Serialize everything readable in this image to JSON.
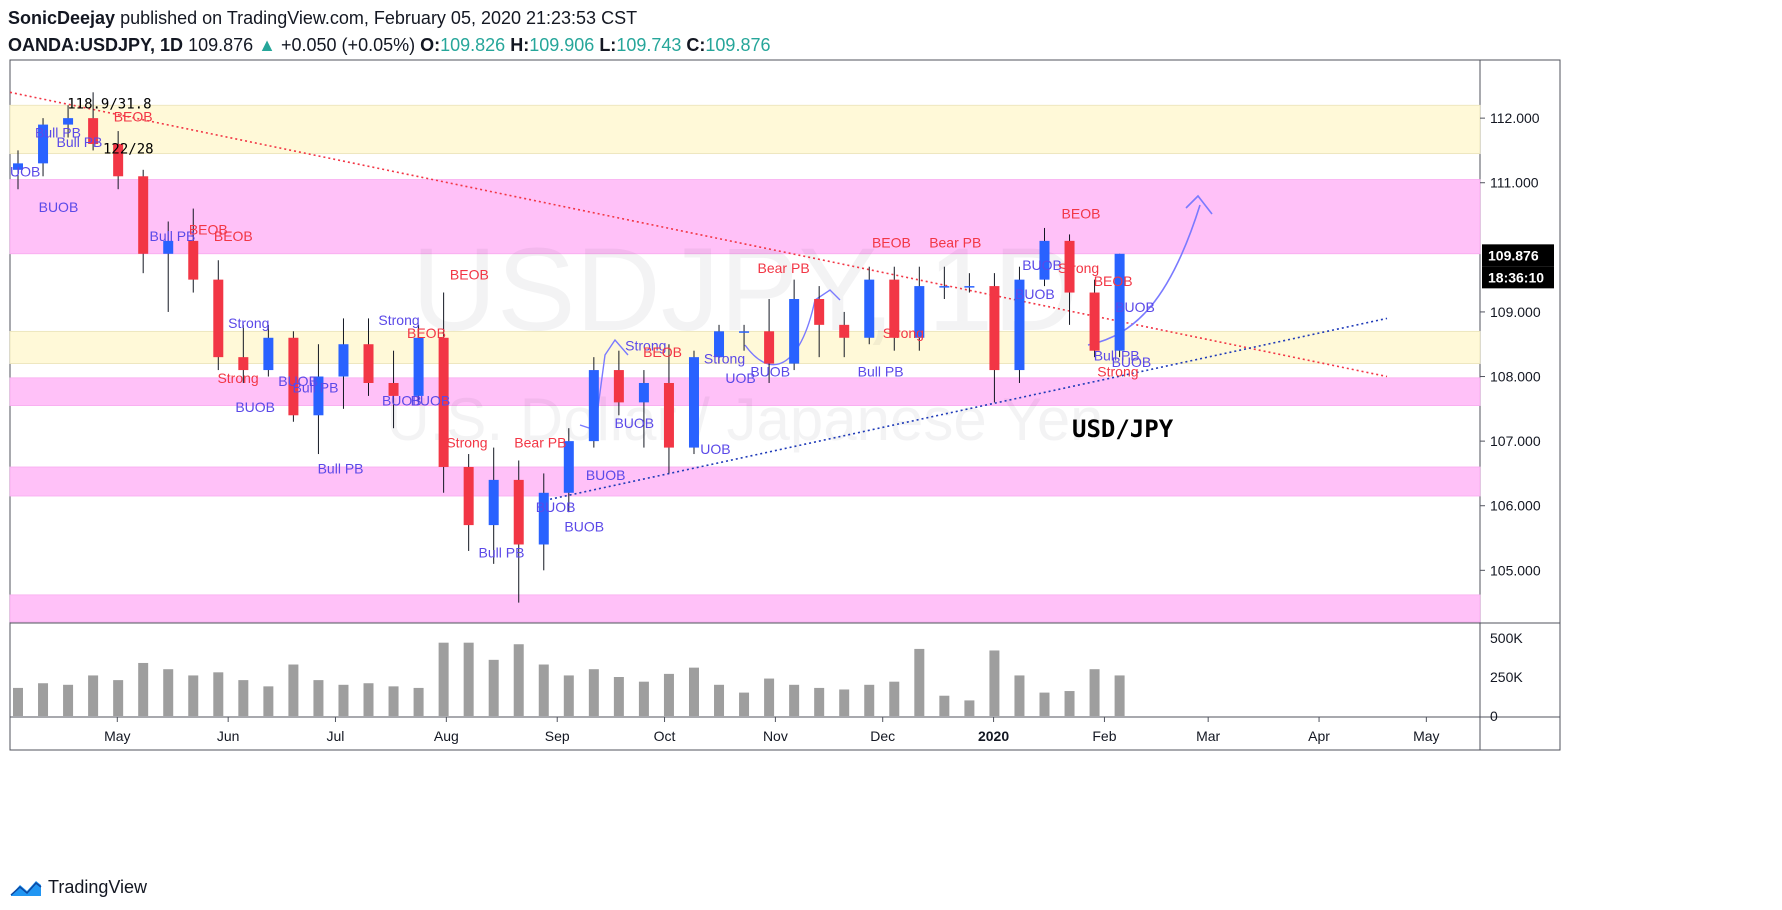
{
  "header": {
    "author": "SonicDeejay",
    "published_text": "published on TradingView.com, February 05, 2020 21:23:53 CST",
    "symbol": "OANDA:USDJPY, 1D",
    "price": "109.876",
    "change_arrow": "▲",
    "change": "+0.050 (+0.05%)",
    "open_label": "O:",
    "open": "109.826",
    "high_label": "H:",
    "high": "109.906",
    "low_label": "L:",
    "low": "109.743",
    "close_label": "C:",
    "close": "109.876"
  },
  "footer": {
    "brand": "TradingView",
    "logo_icon": "tradingview-logo-icon"
  },
  "colors": {
    "up": "#26a69a",
    "candle_up": "#2962ff",
    "candle_down": "#f23645",
    "zone_pink": "#ffc1f8",
    "zone_yellow": "#fff9d8",
    "label_red": "#f23645",
    "label_blue": "#5b49e8",
    "volume": "#9e9e9e"
  },
  "chart_data": {
    "type": "candlestick",
    "title": "USD/JPY",
    "watermark_symbol": "USDJPY, 1D",
    "watermark_name": "U.S. Dollar / Japanese Yen",
    "x_ticks": [
      "May",
      "Jun",
      "Jul",
      "Aug",
      "Sep",
      "Oct",
      "Nov",
      "Dec",
      "2020",
      "Feb",
      "Mar",
      "Apr",
      "May"
    ],
    "y_ticks": [
      "112.000",
      "111.000",
      "109.000",
      "108.000",
      "107.000",
      "106.000",
      "105.000"
    ],
    "ylim": [
      104.2,
      112.9
    ],
    "last_price_label": "109.876",
    "countdown_label": "18:36:10",
    "volume_ticks": [
      "500K",
      "250K",
      "0"
    ],
    "zones": [
      {
        "color": "yellow",
        "low": 111.45,
        "high": 112.2
      },
      {
        "color": "pink",
        "low": 109.9,
        "high": 111.05
      },
      {
        "color": "yellow",
        "low": 108.2,
        "high": 108.7
      },
      {
        "color": "pink",
        "low": 107.55,
        "high": 107.98
      },
      {
        "color": "pink",
        "low": 106.15,
        "high": 106.6
      },
      {
        "color": "pink",
        "low": 104.2,
        "high": 104.62
      }
    ],
    "trend_lines": [
      {
        "name": "downtrend",
        "from": [
          "2019-04-01",
          112.4
        ],
        "to": [
          "2020-04-20",
          108.0
        ]
      },
      {
        "name": "uptrend",
        "from": [
          "2019-08-30",
          106.1
        ],
        "to": [
          "2020-04-20",
          108.9
        ]
      }
    ],
    "ohlc": [
      [
        "2019-04-01",
        111.2,
        111.5,
        110.9,
        111.3
      ],
      [
        "2019-04-08",
        111.3,
        112.0,
        111.1,
        111.9
      ],
      [
        "2019-04-15",
        111.9,
        112.2,
        111.7,
        112.0
      ],
      [
        "2019-04-22",
        112.0,
        112.4,
        111.5,
        111.6
      ],
      [
        "2019-04-29",
        111.6,
        111.8,
        110.9,
        111.1
      ],
      [
        "2019-05-06",
        111.1,
        111.2,
        109.6,
        109.9
      ],
      [
        "2019-05-13",
        109.9,
        110.4,
        109.0,
        110.1
      ],
      [
        "2019-05-20",
        110.1,
        110.6,
        109.3,
        109.5
      ],
      [
        "2019-05-27",
        109.5,
        109.8,
        108.1,
        108.3
      ],
      [
        "2019-06-03",
        108.3,
        108.8,
        107.9,
        108.1
      ],
      [
        "2019-06-10",
        108.1,
        108.8,
        108.0,
        108.6
      ],
      [
        "2019-06-17",
        108.6,
        108.7,
        107.3,
        107.4
      ],
      [
        "2019-06-24",
        107.4,
        108.5,
        106.8,
        108.0
      ],
      [
        "2019-07-01",
        108.0,
        108.9,
        107.5,
        108.5
      ],
      [
        "2019-07-08",
        108.5,
        108.9,
        107.7,
        107.9
      ],
      [
        "2019-07-15",
        107.9,
        108.4,
        107.2,
        107.7
      ],
      [
        "2019-07-22",
        107.7,
        108.8,
        107.6,
        108.6
      ],
      [
        "2019-07-29",
        108.6,
        109.3,
        106.2,
        106.6
      ],
      [
        "2019-08-05",
        106.6,
        106.8,
        105.3,
        105.7
      ],
      [
        "2019-08-12",
        105.7,
        106.9,
        105.1,
        106.4
      ],
      [
        "2019-08-19",
        106.4,
        106.7,
        104.5,
        105.4
      ],
      [
        "2019-08-26",
        105.4,
        106.5,
        105.0,
        106.2
      ],
      [
        "2019-09-02",
        106.2,
        107.2,
        105.9,
        107.0
      ],
      [
        "2019-09-09",
        107.0,
        108.3,
        106.9,
        108.1
      ],
      [
        "2019-09-16",
        108.1,
        108.4,
        107.4,
        107.6
      ],
      [
        "2019-09-23",
        107.6,
        108.1,
        106.9,
        107.9
      ],
      [
        "2019-09-30",
        107.9,
        108.5,
        106.5,
        106.9
      ],
      [
        "2019-10-07",
        106.9,
        108.4,
        106.8,
        108.3
      ],
      [
        "2019-10-14",
        108.3,
        108.8,
        108.2,
        108.7
      ],
      [
        "2019-10-21",
        108.7,
        108.8,
        108.4,
        108.7
      ],
      [
        "2019-10-28",
        108.7,
        109.2,
        107.9,
        108.2
      ],
      [
        "2019-11-04",
        108.2,
        109.5,
        108.1,
        109.2
      ],
      [
        "2019-11-11",
        109.2,
        109.4,
        108.3,
        108.8
      ],
      [
        "2019-11-18",
        108.8,
        109.0,
        108.3,
        108.6
      ],
      [
        "2019-11-25",
        108.6,
        109.7,
        108.5,
        109.5
      ],
      [
        "2019-12-02",
        109.5,
        109.7,
        108.4,
        108.6
      ],
      [
        "2019-12-09",
        108.6,
        109.7,
        108.4,
        109.4
      ],
      [
        "2019-12-16",
        109.4,
        109.7,
        109.2,
        109.4
      ],
      [
        "2019-12-23",
        109.4,
        109.6,
        109.3,
        109.4
      ],
      [
        "2019-12-30",
        109.4,
        109.6,
        107.6,
        108.1
      ],
      [
        "2020-01-06",
        108.1,
        109.7,
        107.9,
        109.5
      ],
      [
        "2020-01-13",
        109.5,
        110.3,
        109.4,
        110.1
      ],
      [
        "2020-01-20",
        110.1,
        110.2,
        108.8,
        109.3
      ],
      [
        "2020-01-27",
        109.3,
        109.5,
        108.3,
        108.4
      ],
      [
        "2020-02-03",
        108.4,
        109.9,
        108.3,
        109.9
      ]
    ],
    "annotations": [
      {
        "text": "118.9/31.8",
        "color": "black",
        "date": "2019-04-17",
        "price": 112.15
      },
      {
        "text": "122/28",
        "color": "black",
        "date": "2019-04-27",
        "price": 111.45
      },
      {
        "text": "BEOB",
        "color": "red",
        "date": "2019-04-30",
        "price": 111.95
      },
      {
        "text": "Bull PB",
        "color": "blue",
        "date": "2019-04-08",
        "price": 111.7
      },
      {
        "text": "Bull PB",
        "color": "blue",
        "date": "2019-04-14",
        "price": 111.55
      },
      {
        "text": "UOB",
        "color": "blue",
        "date": "2019-04-01",
        "price": 111.1
      },
      {
        "text": "BUOB",
        "color": "blue",
        "date": "2019-04-09",
        "price": 110.55
      },
      {
        "text": "Bull PB",
        "color": "blue",
        "date": "2019-05-10",
        "price": 110.1
      },
      {
        "text": "BEOB",
        "color": "red",
        "date": "2019-05-21",
        "price": 110.2
      },
      {
        "text": "BEOB",
        "color": "red",
        "date": "2019-05-28",
        "price": 110.1
      },
      {
        "text": "Strong",
        "color": "blue",
        "date": "2019-06-01",
        "price": 108.75
      },
      {
        "text": "Strong",
        "color": "red",
        "date": "2019-05-29",
        "price": 107.9
      },
      {
        "text": "BUOB",
        "color": "blue",
        "date": "2019-06-15",
        "price": 107.85
      },
      {
        "text": "Bull PB",
        "color": "blue",
        "date": "2019-06-19",
        "price": 107.75
      },
      {
        "text": "BUOB",
        "color": "blue",
        "date": "2019-06-03",
        "price": 107.45
      },
      {
        "text": "Bull PB",
        "color": "blue",
        "date": "2019-06-26",
        "price": 106.5
      },
      {
        "text": "Strong",
        "color": "blue",
        "date": "2019-07-13",
        "price": 108.8
      },
      {
        "text": "BEOB",
        "color": "red",
        "date": "2019-07-21",
        "price": 108.6
      },
      {
        "text": "BUOB",
        "color": "blue",
        "date": "2019-07-14",
        "price": 107.55
      },
      {
        "text": "BUOB",
        "color": "blue",
        "date": "2019-07-22",
        "price": 107.55
      },
      {
        "text": "BEOB",
        "color": "red",
        "date": "2019-08-02",
        "price": 109.5
      },
      {
        "text": "Strong",
        "color": "red",
        "date": "2019-08-01",
        "price": 106.9
      },
      {
        "text": "Bear PB",
        "color": "red",
        "date": "2019-08-20",
        "price": 106.9
      },
      {
        "text": "BUOB",
        "color": "blue",
        "date": "2019-08-26",
        "price": 105.9
      },
      {
        "text": "Bull PB",
        "color": "blue",
        "date": "2019-08-10",
        "price": 105.2
      },
      {
        "text": "BUOB",
        "color": "blue",
        "date": "2019-09-09",
        "price": 106.4
      },
      {
        "text": "BUOB",
        "color": "blue",
        "date": "2019-09-03",
        "price": 105.6
      },
      {
        "text": "Strong",
        "color": "blue",
        "date": "2019-09-20",
        "price": 108.4
      },
      {
        "text": "BEOB",
        "color": "red",
        "date": "2019-09-25",
        "price": 108.3
      },
      {
        "text": "BUOB",
        "color": "blue",
        "date": "2019-09-17",
        "price": 107.2
      },
      {
        "text": "UOB",
        "color": "blue",
        "date": "2019-10-11",
        "price": 106.8
      },
      {
        "text": "Strong",
        "color": "blue",
        "date": "2019-10-12",
        "price": 108.2
      },
      {
        "text": "UOB",
        "color": "blue",
        "date": "2019-10-18",
        "price": 107.9
      },
      {
        "text": "BUOB",
        "color": "blue",
        "date": "2019-10-25",
        "price": 108.0
      },
      {
        "text": "Bear PB",
        "color": "red",
        "date": "2019-10-27",
        "price": 109.6
      },
      {
        "text": "Bull PB",
        "color": "blue",
        "date": "2019-11-24",
        "price": 108.0
      },
      {
        "text": "Strong",
        "color": "red",
        "date": "2019-12-01",
        "price": 108.6
      },
      {
        "text": "BEOB",
        "color": "red",
        "date": "2019-11-28",
        "price": 110.0
      },
      {
        "text": "Bear PB",
        "color": "red",
        "date": "2019-12-14",
        "price": 110.0
      },
      {
        "text": "BEOB",
        "color": "red",
        "date": "2020-01-20",
        "price": 110.45
      },
      {
        "text": "BUOB",
        "color": "blue",
        "date": "2020-01-09",
        "price": 109.65
      },
      {
        "text": "Strong",
        "color": "red",
        "date": "2020-01-19",
        "price": 109.6
      },
      {
        "text": "BUOB",
        "color": "blue",
        "date": "2020-01-07",
        "price": 109.2
      },
      {
        "text": "BEOB",
        "color": "red",
        "date": "2020-01-29",
        "price": 109.4
      },
      {
        "text": "BUOB",
        "color": "blue",
        "date": "2020-02-04",
        "price": 109.0
      },
      {
        "text": "Bull PB",
        "color": "blue",
        "date": "2020-01-29",
        "price": 108.25
      },
      {
        "text": "BUOB",
        "color": "blue",
        "date": "2020-02-03",
        "price": 108.15
      },
      {
        "text": "Strong",
        "color": "red",
        "date": "2020-01-30",
        "price": 108.0
      }
    ],
    "volume": [
      [
        "2019-04-01",
        180
      ],
      [
        "2019-04-08",
        210
      ],
      [
        "2019-04-15",
        200
      ],
      [
        "2019-04-22",
        260
      ],
      [
        "2019-04-29",
        230
      ],
      [
        "2019-05-06",
        340
      ],
      [
        "2019-05-13",
        300
      ],
      [
        "2019-05-20",
        260
      ],
      [
        "2019-05-27",
        280
      ],
      [
        "2019-06-03",
        230
      ],
      [
        "2019-06-10",
        190
      ],
      [
        "2019-06-17",
        330
      ],
      [
        "2019-06-24",
        230
      ],
      [
        "2019-07-01",
        200
      ],
      [
        "2019-07-08",
        210
      ],
      [
        "2019-07-15",
        190
      ],
      [
        "2019-07-22",
        180
      ],
      [
        "2019-07-29",
        470
      ],
      [
        "2019-08-05",
        470
      ],
      [
        "2019-08-12",
        360
      ],
      [
        "2019-08-19",
        460
      ],
      [
        "2019-08-26",
        330
      ],
      [
        "2019-09-02",
        260
      ],
      [
        "2019-09-09",
        300
      ],
      [
        "2019-09-16",
        250
      ],
      [
        "2019-09-23",
        220
      ],
      [
        "2019-09-30",
        270
      ],
      [
        "2019-10-07",
        310
      ],
      [
        "2019-10-14",
        200
      ],
      [
        "2019-10-21",
        150
      ],
      [
        "2019-10-28",
        240
      ],
      [
        "2019-11-04",
        200
      ],
      [
        "2019-11-11",
        180
      ],
      [
        "2019-11-18",
        170
      ],
      [
        "2019-11-25",
        200
      ],
      [
        "2019-12-02",
        220
      ],
      [
        "2019-12-09",
        430
      ],
      [
        "2019-12-16",
        130
      ],
      [
        "2019-12-23",
        100
      ],
      [
        "2019-12-30",
        420
      ],
      [
        "2020-01-06",
        260
      ],
      [
        "2020-01-13",
        150
      ],
      [
        "2020-01-20",
        160
      ],
      [
        "2020-01-27",
        300
      ],
      [
        "2020-02-03",
        260
      ]
    ],
    "vol_max": 500
  }
}
